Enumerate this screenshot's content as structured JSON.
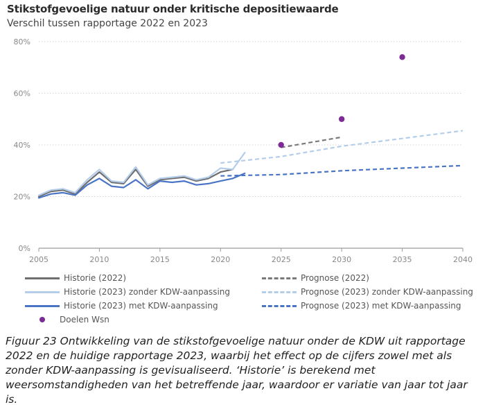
{
  "header": {
    "title": "Stikstofgevoelige natuur onder kritische depositiewaarde",
    "subtitle": "Verschil tussen rapportage 2022 en 2023"
  },
  "caption": "Figuur 23 Ontwikkeling van de stikstofgevoelige natuur onder de KDW uit rapportage 2022 en de huidige rapportage 2023, waarbij het effect op de cijfers zowel met als zonder KDW-aanpassing is gevisualiseerd. ‘Historie’ is berekend met weersomstandigheden van het betreffende jaar, waardoor er variatie van jaar tot jaar is.",
  "chart_data": {
    "type": "line",
    "title": "Stikstofgevoelige natuur onder kritische depositiewaarde",
    "subtitle": "Verschil tussen rapportage 2022 en 2023",
    "xlabel": "",
    "ylabel": "",
    "xlim": [
      2005,
      2040
    ],
    "ylim": [
      0,
      80
    ],
    "x_ticks": [
      2005,
      2010,
      2015,
      2020,
      2025,
      2030,
      2035,
      2040
    ],
    "y_ticks": [
      0,
      20,
      40,
      60,
      80
    ],
    "y_tick_labels": [
      "0%",
      "20%",
      "40%",
      "60%",
      "80%"
    ],
    "grid": "horizontal",
    "series": [
      {
        "name": "Historie (2022)",
        "color": "#6e6e6e",
        "style": "solid",
        "x": [
          2005,
          2006,
          2007,
          2008,
          2009,
          2010,
          2011,
          2012,
          2013,
          2014,
          2015,
          2016,
          2017,
          2018,
          2019,
          2020,
          2021
        ],
        "values": [
          20.0,
          22.0,
          22.5,
          21.0,
          25.5,
          29.5,
          25.5,
          25.0,
          30.5,
          24.0,
          26.5,
          27.0,
          27.5,
          26.0,
          27.0,
          29.5,
          30.5
        ]
      },
      {
        "name": "Historie (2023) zonder KDW-aanpassing",
        "color": "#b4cdea",
        "style": "solid",
        "x": [
          2005,
          2006,
          2007,
          2008,
          2009,
          2010,
          2011,
          2012,
          2013,
          2014,
          2015,
          2016,
          2017,
          2018,
          2019,
          2020,
          2021,
          2022
        ],
        "values": [
          20.5,
          22.5,
          23.0,
          21.5,
          26.5,
          30.5,
          26.0,
          25.5,
          31.5,
          24.5,
          27.0,
          27.5,
          28.0,
          26.5,
          27.5,
          31.0,
          30.5,
          37.0
        ]
      },
      {
        "name": "Historie (2023) met KDW-aanpassing",
        "color": "#4a74c4",
        "style": "solid",
        "x": [
          2005,
          2006,
          2007,
          2008,
          2009,
          2010,
          2011,
          2012,
          2013,
          2014,
          2015,
          2016,
          2017,
          2018,
          2019,
          2020,
          2021,
          2022
        ],
        "values": [
          19.5,
          21.0,
          21.5,
          20.5,
          24.5,
          27.0,
          24.0,
          23.5,
          26.5,
          23.0,
          26.0,
          25.5,
          26.0,
          24.5,
          25.0,
          26.0,
          27.0,
          29.0
        ]
      },
      {
        "name": "Prognose (2022)",
        "color": "#7a7a7a",
        "style": "dashed",
        "x": [
          2025,
          2030
        ],
        "values": [
          39.0,
          43.0
        ]
      },
      {
        "name": "Prognose (2023) zonder KDW-aanpassing",
        "color": "#b4cdea",
        "style": "dashed",
        "x": [
          2020,
          2025,
          2030,
          2035,
          2040
        ],
        "values": [
          33.0,
          35.5,
          39.5,
          42.5,
          45.5
        ]
      },
      {
        "name": "Prognose (2023) met KDW-aanpassing",
        "color": "#4a74c4",
        "style": "dashed",
        "x": [
          2020,
          2025,
          2030,
          2035,
          2040
        ],
        "values": [
          28.0,
          28.5,
          30.0,
          31.0,
          32.0
        ]
      },
      {
        "name": "Doelen Wsn",
        "color": "#7d2c97",
        "style": "points",
        "x": [
          2025,
          2030,
          2035
        ],
        "values": [
          40,
          50,
          74
        ]
      }
    ]
  }
}
